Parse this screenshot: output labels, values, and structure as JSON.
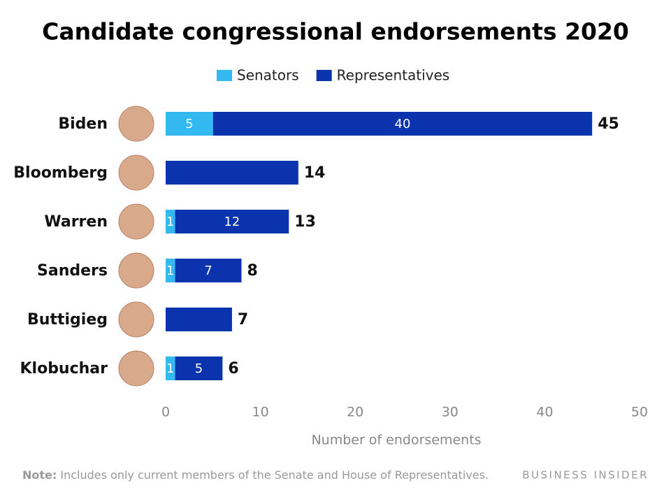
{
  "chart_data": {
    "type": "stacked-barh",
    "title": "Candidate congressional endorsements 2020",
    "categories": [
      "Biden",
      "Bloomberg",
      "Warren",
      "Sanders",
      "Buttigieg",
      "Klobuchar"
    ],
    "series": [
      {
        "name": "Senators",
        "color": "#33b8ef",
        "values": [
          5,
          0,
          1,
          1,
          0,
          1
        ]
      },
      {
        "name": "Representatives",
        "color": "#0a33ad",
        "values": [
          40,
          14,
          12,
          7,
          7,
          5
        ]
      }
    ],
    "totals": [
      45,
      14,
      13,
      8,
      7,
      6
    ],
    "xlim": [
      0,
      50
    ],
    "xticks": [
      0,
      10,
      20,
      30,
      40,
      50
    ],
    "xlabel": "Number of endorsements",
    "note_label": "Note:",
    "note": "Includes only current members of the Senate and House of Representatives.",
    "source": "BUSINESS INSIDER",
    "grid": false
  }
}
